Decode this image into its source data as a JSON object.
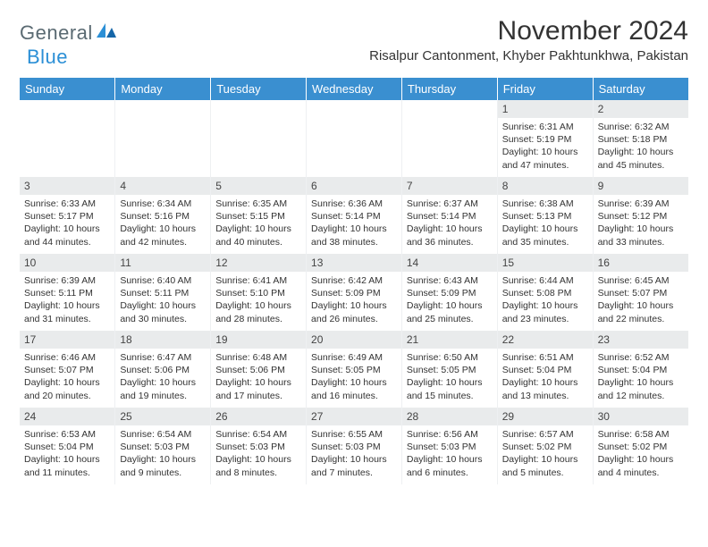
{
  "logo": {
    "text1": "General",
    "text2": "Blue"
  },
  "title": "November 2024",
  "location": "Risalpur Cantonment, Khyber Pakhtunkhwa, Pakistan",
  "colors": {
    "header_bg": "#3a8fd0",
    "header_text": "#ffffff",
    "daynum_bg": "#e9ebec",
    "text": "#333333",
    "logo_gray": "#5a6a72",
    "logo_blue": "#2b8fd6"
  },
  "weekdays": [
    "Sunday",
    "Monday",
    "Tuesday",
    "Wednesday",
    "Thursday",
    "Friday",
    "Saturday"
  ],
  "weeks": [
    [
      {
        "n": "",
        "sr": "",
        "ss": "",
        "dl": ""
      },
      {
        "n": "",
        "sr": "",
        "ss": "",
        "dl": ""
      },
      {
        "n": "",
        "sr": "",
        "ss": "",
        "dl": ""
      },
      {
        "n": "",
        "sr": "",
        "ss": "",
        "dl": ""
      },
      {
        "n": "",
        "sr": "",
        "ss": "",
        "dl": ""
      },
      {
        "n": "1",
        "sr": "Sunrise: 6:31 AM",
        "ss": "Sunset: 5:19 PM",
        "dl": "Daylight: 10 hours and 47 minutes."
      },
      {
        "n": "2",
        "sr": "Sunrise: 6:32 AM",
        "ss": "Sunset: 5:18 PM",
        "dl": "Daylight: 10 hours and 45 minutes."
      }
    ],
    [
      {
        "n": "3",
        "sr": "Sunrise: 6:33 AM",
        "ss": "Sunset: 5:17 PM",
        "dl": "Daylight: 10 hours and 44 minutes."
      },
      {
        "n": "4",
        "sr": "Sunrise: 6:34 AM",
        "ss": "Sunset: 5:16 PM",
        "dl": "Daylight: 10 hours and 42 minutes."
      },
      {
        "n": "5",
        "sr": "Sunrise: 6:35 AM",
        "ss": "Sunset: 5:15 PM",
        "dl": "Daylight: 10 hours and 40 minutes."
      },
      {
        "n": "6",
        "sr": "Sunrise: 6:36 AM",
        "ss": "Sunset: 5:14 PM",
        "dl": "Daylight: 10 hours and 38 minutes."
      },
      {
        "n": "7",
        "sr": "Sunrise: 6:37 AM",
        "ss": "Sunset: 5:14 PM",
        "dl": "Daylight: 10 hours and 36 minutes."
      },
      {
        "n": "8",
        "sr": "Sunrise: 6:38 AM",
        "ss": "Sunset: 5:13 PM",
        "dl": "Daylight: 10 hours and 35 minutes."
      },
      {
        "n": "9",
        "sr": "Sunrise: 6:39 AM",
        "ss": "Sunset: 5:12 PM",
        "dl": "Daylight: 10 hours and 33 minutes."
      }
    ],
    [
      {
        "n": "10",
        "sr": "Sunrise: 6:39 AM",
        "ss": "Sunset: 5:11 PM",
        "dl": "Daylight: 10 hours and 31 minutes."
      },
      {
        "n": "11",
        "sr": "Sunrise: 6:40 AM",
        "ss": "Sunset: 5:11 PM",
        "dl": "Daylight: 10 hours and 30 minutes."
      },
      {
        "n": "12",
        "sr": "Sunrise: 6:41 AM",
        "ss": "Sunset: 5:10 PM",
        "dl": "Daylight: 10 hours and 28 minutes."
      },
      {
        "n": "13",
        "sr": "Sunrise: 6:42 AM",
        "ss": "Sunset: 5:09 PM",
        "dl": "Daylight: 10 hours and 26 minutes."
      },
      {
        "n": "14",
        "sr": "Sunrise: 6:43 AM",
        "ss": "Sunset: 5:09 PM",
        "dl": "Daylight: 10 hours and 25 minutes."
      },
      {
        "n": "15",
        "sr": "Sunrise: 6:44 AM",
        "ss": "Sunset: 5:08 PM",
        "dl": "Daylight: 10 hours and 23 minutes."
      },
      {
        "n": "16",
        "sr": "Sunrise: 6:45 AM",
        "ss": "Sunset: 5:07 PM",
        "dl": "Daylight: 10 hours and 22 minutes."
      }
    ],
    [
      {
        "n": "17",
        "sr": "Sunrise: 6:46 AM",
        "ss": "Sunset: 5:07 PM",
        "dl": "Daylight: 10 hours and 20 minutes."
      },
      {
        "n": "18",
        "sr": "Sunrise: 6:47 AM",
        "ss": "Sunset: 5:06 PM",
        "dl": "Daylight: 10 hours and 19 minutes."
      },
      {
        "n": "19",
        "sr": "Sunrise: 6:48 AM",
        "ss": "Sunset: 5:06 PM",
        "dl": "Daylight: 10 hours and 17 minutes."
      },
      {
        "n": "20",
        "sr": "Sunrise: 6:49 AM",
        "ss": "Sunset: 5:05 PM",
        "dl": "Daylight: 10 hours and 16 minutes."
      },
      {
        "n": "21",
        "sr": "Sunrise: 6:50 AM",
        "ss": "Sunset: 5:05 PM",
        "dl": "Daylight: 10 hours and 15 minutes."
      },
      {
        "n": "22",
        "sr": "Sunrise: 6:51 AM",
        "ss": "Sunset: 5:04 PM",
        "dl": "Daylight: 10 hours and 13 minutes."
      },
      {
        "n": "23",
        "sr": "Sunrise: 6:52 AM",
        "ss": "Sunset: 5:04 PM",
        "dl": "Daylight: 10 hours and 12 minutes."
      }
    ],
    [
      {
        "n": "24",
        "sr": "Sunrise: 6:53 AM",
        "ss": "Sunset: 5:04 PM",
        "dl": "Daylight: 10 hours and 11 minutes."
      },
      {
        "n": "25",
        "sr": "Sunrise: 6:54 AM",
        "ss": "Sunset: 5:03 PM",
        "dl": "Daylight: 10 hours and 9 minutes."
      },
      {
        "n": "26",
        "sr": "Sunrise: 6:54 AM",
        "ss": "Sunset: 5:03 PM",
        "dl": "Daylight: 10 hours and 8 minutes."
      },
      {
        "n": "27",
        "sr": "Sunrise: 6:55 AM",
        "ss": "Sunset: 5:03 PM",
        "dl": "Daylight: 10 hours and 7 minutes."
      },
      {
        "n": "28",
        "sr": "Sunrise: 6:56 AM",
        "ss": "Sunset: 5:03 PM",
        "dl": "Daylight: 10 hours and 6 minutes."
      },
      {
        "n": "29",
        "sr": "Sunrise: 6:57 AM",
        "ss": "Sunset: 5:02 PM",
        "dl": "Daylight: 10 hours and 5 minutes."
      },
      {
        "n": "30",
        "sr": "Sunrise: 6:58 AM",
        "ss": "Sunset: 5:02 PM",
        "dl": "Daylight: 10 hours and 4 minutes."
      }
    ]
  ]
}
